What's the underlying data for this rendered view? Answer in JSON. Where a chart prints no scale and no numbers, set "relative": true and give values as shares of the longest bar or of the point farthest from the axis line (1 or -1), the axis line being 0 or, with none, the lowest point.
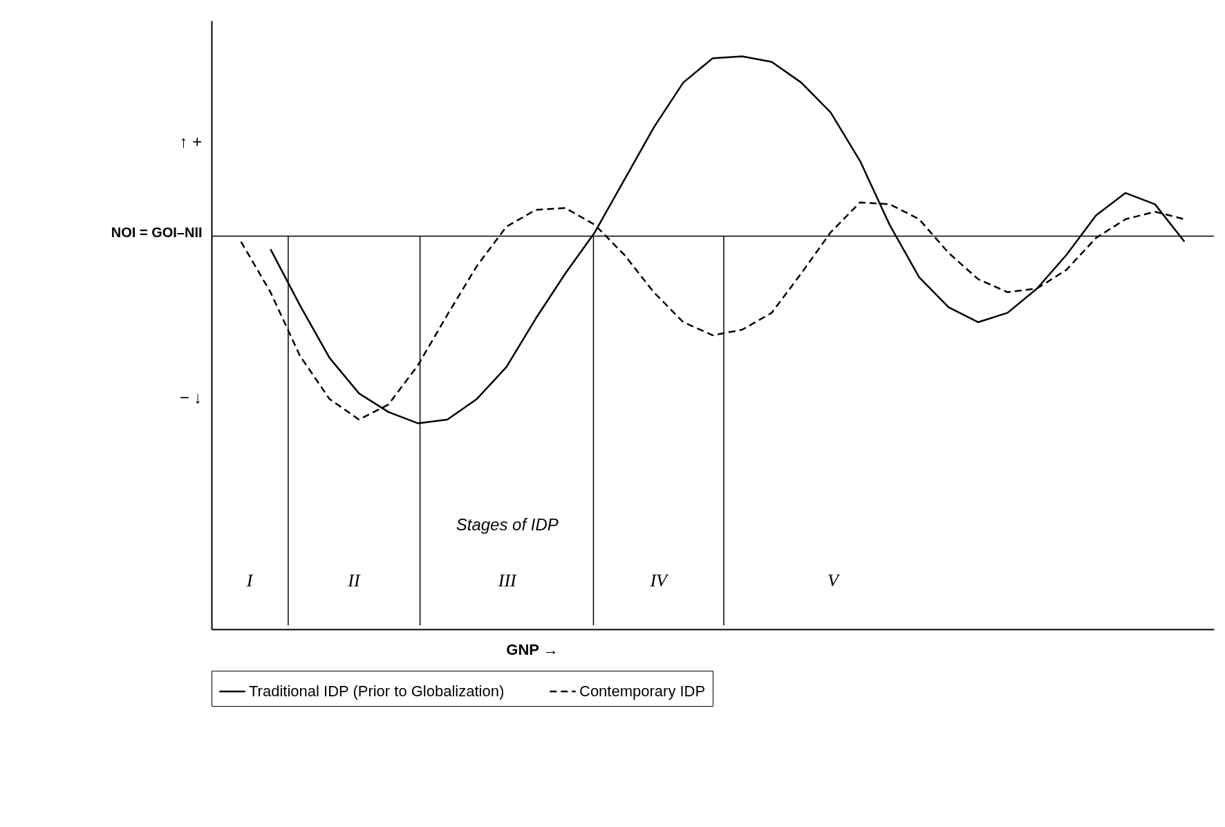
{
  "chart_data": {
    "type": "line",
    "relative": true,
    "ylabel": "NOI = GOI–NII",
    "grid": false,
    "legend": "bottom",
    "marker": "none",
    "categories": [
      null,
      null,
      null,
      null,
      null,
      null,
      null,
      null,
      null,
      null,
      null,
      null,
      null,
      null,
      null,
      null,
      null,
      null,
      null,
      null,
      null,
      null,
      null,
      null,
      null,
      null,
      null,
      null,
      null,
      null,
      null,
      null,
      null,
      null,
      null
    ],
    "series": [
      {
        "name": "Traditional IDP (Prior to Globalization)",
        "color": "#000000",
        "line_style": "solid",
        "values": [
          null,
          null,
          -0.07,
          -0.37,
          -0.65,
          -0.84,
          -0.94,
          -1,
          -0.98,
          -0.87,
          -0.7,
          -0.44,
          -0.2,
          0.02,
          0.3,
          0.58,
          0.82,
          0.95,
          0.96,
          0.93,
          0.82,
          0.66,
          0.4,
          0.06,
          -0.22,
          -0.38,
          -0.46,
          -0.41,
          -0.28,
          -0.1,
          0.11,
          0.23,
          0.17,
          -0.03,
          null
        ]
      },
      {
        "name": "Contemporary IDP",
        "color": "#000000",
        "line_style": "dashed",
        "values": [
          null,
          -0.03,
          -0.3,
          -0.64,
          -0.87,
          -0.98,
          -0.9,
          -0.69,
          -0.42,
          -0.16,
          0.05,
          0.14,
          0.15,
          0.06,
          -0.1,
          -0.3,
          -0.46,
          -0.53,
          -0.5,
          -0.41,
          -0.2,
          0.02,
          0.18,
          0.17,
          0.09,
          -0.09,
          -0.23,
          -0.3,
          -0.28,
          -0.18,
          -0.01,
          0.09,
          0.13,
          0.09,
          null
        ]
      }
    ],
    "annotations": [
      "↑ +",
      "− ↓",
      "Stages of IDP",
      "I",
      "II",
      "III",
      "IV",
      "V",
      "GNP →"
    ]
  }
}
